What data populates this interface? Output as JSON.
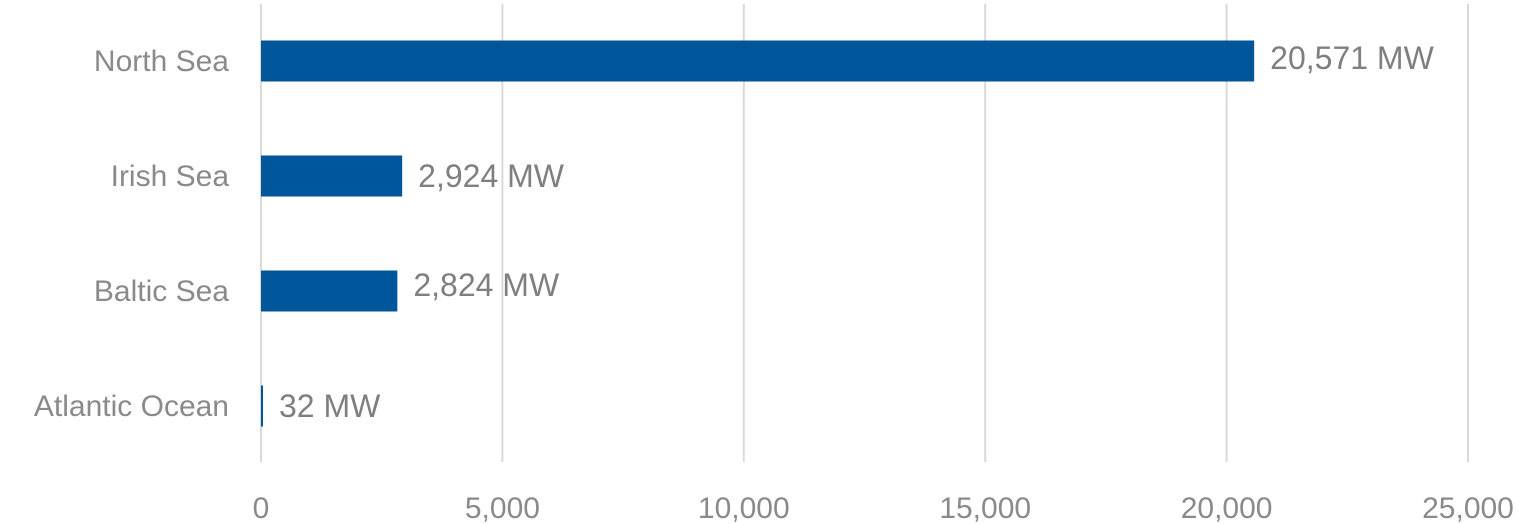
{
  "chart_data": {
    "type": "bar",
    "orientation": "horizontal",
    "categories": [
      "North Sea",
      "Irish Sea",
      "Baltic Sea",
      "Atlantic Ocean"
    ],
    "values": [
      20571,
      2924,
      2824,
      32
    ],
    "data_labels": [
      "20,571 MW",
      "2,924 MW",
      "2,824 MW",
      "32 MW"
    ],
    "xlim": [
      0,
      25000
    ],
    "x_ticks": [
      0,
      5000,
      10000,
      15000,
      20000,
      25000
    ],
    "x_tick_labels": [
      "0",
      "5,000",
      "10,000",
      "15,000",
      "20,000",
      "25,000"
    ],
    "grid": true,
    "legend": "none",
    "bar_color": "#00569a",
    "title": "",
    "xlabel": "",
    "ylabel": ""
  }
}
